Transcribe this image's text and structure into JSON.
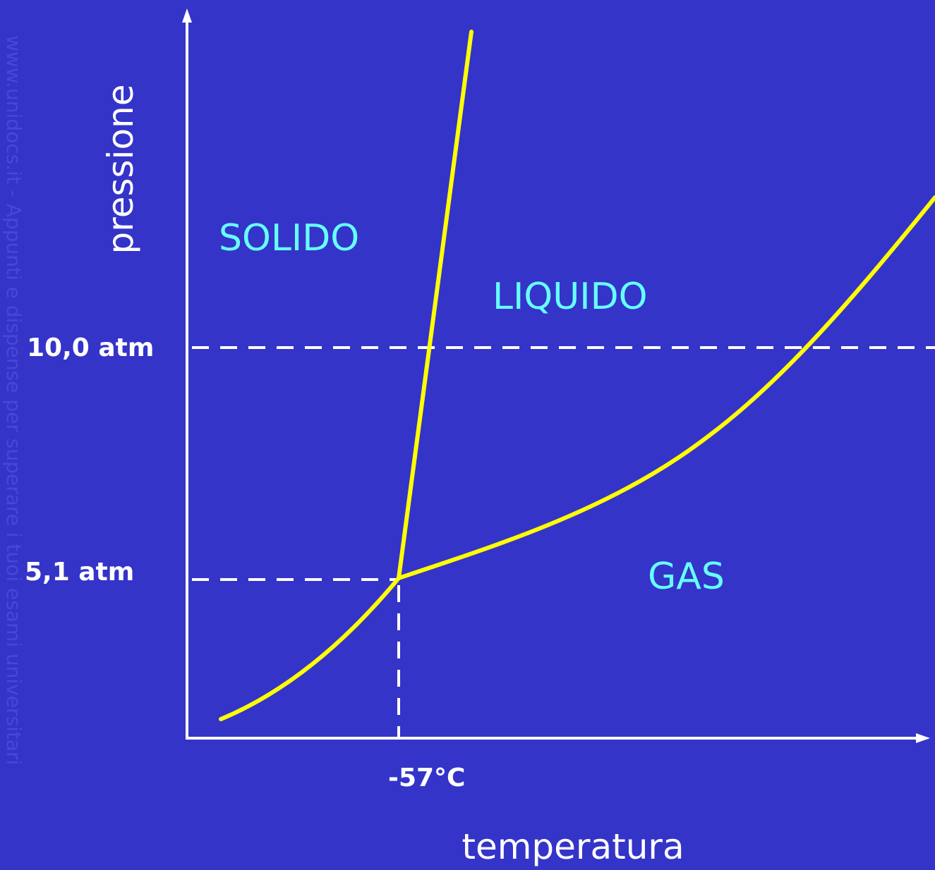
{
  "axes": {
    "y_label": "pressione",
    "x_label": "temperatura"
  },
  "regions": {
    "solid": "SOLIDO",
    "liquid": "LIQUIDO",
    "gas": "GAS"
  },
  "ticks": {
    "high_pressure": "10,0 atm",
    "triple_pressure": "5,1 atm",
    "triple_temperature": "-57°C"
  },
  "watermark": "www.unidocs.it  - Appunti e dispense per superare i tuoi esami universitari"
}
